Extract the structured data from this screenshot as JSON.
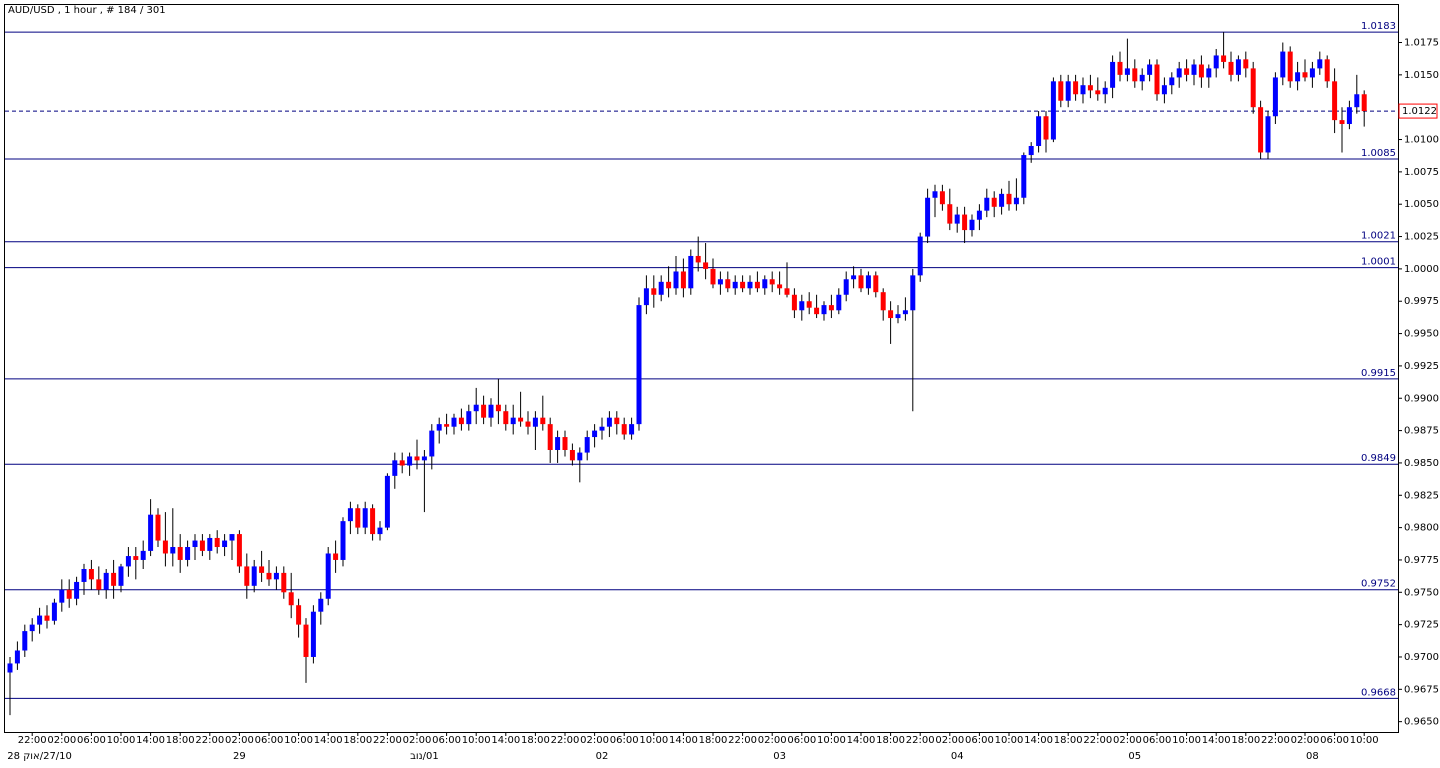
{
  "chart_data": {
    "type": "candlestick",
    "title": "AUD/USD , 1 hour , # 184 / 301",
    "up_color": "#0000ff",
    "down_color": "#ff0000",
    "wick_color": "#000000",
    "level_color": "#000080",
    "ylim": [
      0.9642,
      1.0204
    ],
    "yticks": [
      {
        "value": 0.965,
        "label": "0.9650"
      },
      0.9675,
      {
        "value": 0.97,
        "label": "0.9700"
      },
      0.9725,
      {
        "value": 0.975,
        "label": "0.9750"
      },
      0.9775,
      {
        "value": 0.98,
        "label": "0.9800"
      },
      0.9825,
      {
        "value": 0.985,
        "label": "0.9850"
      },
      0.9875,
      {
        "value": 0.99,
        "label": "0.9900"
      },
      0.9925,
      {
        "value": 0.995,
        "label": "0.9950"
      },
      0.9975,
      {
        "value": 1.0,
        "label": "1.0000"
      },
      1.0025,
      {
        "value": 1.005,
        "label": "1.0050"
      },
      1.0075,
      {
        "value": 1.01,
        "label": "1.0100"
      },
      {
        "value": 1.015,
        "label": "1.0150"
      },
      1.0175
    ],
    "levels": [
      1.0183,
      1.0085,
      1.0021,
      1.0001,
      0.9915,
      0.9849,
      0.9752,
      0.9668
    ],
    "current_price": 1.0122,
    "xticks": [
      {
        "value": 3,
        "label": "22:00"
      },
      {
        "value": 7,
        "label": "02:00"
      },
      {
        "value": 11,
        "label": "06:00"
      },
      {
        "value": 15,
        "label": "10:00"
      },
      {
        "value": 19,
        "label": "14:00"
      },
      {
        "value": 23,
        "label": "18:00"
      },
      {
        "value": 27,
        "label": "22:00"
      },
      {
        "value": 31,
        "label": "02:00"
      },
      {
        "value": 35,
        "label": "06:00"
      },
      {
        "value": 39,
        "label": "10:00"
      },
      {
        "value": 43,
        "label": "14:00"
      },
      {
        "value": 47,
        "label": "18:00"
      },
      {
        "value": 51,
        "label": "22:00"
      },
      {
        "value": 55,
        "label": "02:00"
      },
      {
        "value": 59,
        "label": "06:00"
      },
      {
        "value": 63,
        "label": "10:00"
      },
      {
        "value": 67,
        "label": "14:00"
      },
      {
        "value": 71,
        "label": "18:00"
      },
      {
        "value": 75,
        "label": "22:00"
      },
      {
        "value": 79,
        "label": "02:00"
      },
      {
        "value": 83,
        "label": "06:00"
      },
      {
        "value": 87,
        "label": "10:00"
      },
      {
        "value": 91,
        "label": "14:00"
      },
      {
        "value": 95,
        "label": "18:00"
      },
      {
        "value": 99,
        "label": "22:00"
      },
      {
        "value": 103,
        "label": "02:00"
      },
      {
        "value": 107,
        "label": "06:00"
      },
      {
        "value": 111,
        "label": "10:00"
      },
      {
        "value": 115,
        "label": "14:00"
      },
      {
        "value": 119,
        "label": "18:00"
      },
      {
        "value": 123,
        "label": "22:00"
      },
      {
        "value": 127,
        "label": "02:00"
      },
      {
        "value": 131,
        "label": "06:00"
      },
      {
        "value": 135,
        "label": "10:00"
      },
      {
        "value": 139,
        "label": "14:00"
      },
      {
        "value": 143,
        "label": "18:00"
      },
      {
        "value": 147,
        "label": "22:00"
      },
      {
        "value": 151,
        "label": "02:00"
      },
      {
        "value": 155,
        "label": "06:00"
      },
      {
        "value": 159,
        "label": "10:00"
      },
      {
        "value": 163,
        "label": "14:00"
      },
      {
        "value": 167,
        "label": "18:00"
      },
      {
        "value": 171,
        "label": "22:00"
      },
      {
        "value": 175,
        "label": "02:00"
      },
      {
        "value": 179,
        "label": "06:00"
      },
      {
        "value": 183,
        "label": "10:00"
      }
    ],
    "date_ticks": [
      {
        "value": 4,
        "label": "27/10/אוק 28"
      },
      {
        "value": 31,
        "label": "29"
      },
      {
        "value": 56,
        "label": "01/נוב"
      },
      {
        "value": 80,
        "label": "02"
      },
      {
        "value": 104,
        "label": "03"
      },
      {
        "value": 128,
        "label": "04"
      },
      {
        "value": 152,
        "label": "05"
      },
      {
        "value": 176,
        "label": "08"
      }
    ],
    "ohlc": [
      [
        0.9688,
        0.97,
        0.9655,
        0.9695
      ],
      [
        0.9695,
        0.9712,
        0.969,
        0.9705
      ],
      [
        0.9705,
        0.9725,
        0.97,
        0.972
      ],
      [
        0.972,
        0.973,
        0.9712,
        0.9725
      ],
      [
        0.9725,
        0.9738,
        0.9718,
        0.9732
      ],
      [
        0.9732,
        0.974,
        0.9722,
        0.9728
      ],
      [
        0.9728,
        0.9745,
        0.9725,
        0.9742
      ],
      [
        0.9742,
        0.976,
        0.9735,
        0.9752
      ],
      [
        0.9752,
        0.976,
        0.9738,
        0.9745
      ],
      [
        0.9745,
        0.9762,
        0.974,
        0.9758
      ],
      [
        0.9758,
        0.9772,
        0.9748,
        0.9768
      ],
      [
        0.9768,
        0.9775,
        0.9752,
        0.976
      ],
      [
        0.976,
        0.977,
        0.9748,
        0.9752
      ],
      [
        0.9752,
        0.9768,
        0.9745,
        0.9765
      ],
      [
        0.9765,
        0.9775,
        0.9745,
        0.9755
      ],
      [
        0.9755,
        0.9772,
        0.975,
        0.977
      ],
      [
        0.977,
        0.9785,
        0.9762,
        0.9778
      ],
      [
        0.9778,
        0.9785,
        0.976,
        0.9775
      ],
      [
        0.9775,
        0.979,
        0.9768,
        0.9782
      ],
      [
        0.9782,
        0.9822,
        0.9778,
        0.981
      ],
      [
        0.981,
        0.9815,
        0.9785,
        0.979
      ],
      [
        0.979,
        0.9812,
        0.977,
        0.978
      ],
      [
        0.978,
        0.9815,
        0.977,
        0.9785
      ],
      [
        0.9785,
        0.9795,
        0.9765,
        0.9775
      ],
      [
        0.9775,
        0.979,
        0.977,
        0.9785
      ],
      [
        0.9785,
        0.9795,
        0.9775,
        0.979
      ],
      [
        0.979,
        0.9795,
        0.9778,
        0.9782
      ],
      [
        0.9782,
        0.9795,
        0.9775,
        0.9792
      ],
      [
        0.9792,
        0.9798,
        0.978,
        0.9785
      ],
      [
        0.9785,
        0.9795,
        0.9778,
        0.979
      ],
      [
        0.979,
        0.9795,
        0.9775,
        0.9795
      ],
      [
        0.9795,
        0.9798,
        0.9765,
        0.977
      ],
      [
        0.977,
        0.978,
        0.9745,
        0.9755
      ],
      [
        0.9755,
        0.9775,
        0.975,
        0.977
      ],
      [
        0.977,
        0.9782,
        0.9758,
        0.9765
      ],
      [
        0.9765,
        0.9775,
        0.9755,
        0.976
      ],
      [
        0.976,
        0.977,
        0.9752,
        0.9765
      ],
      [
        0.9765,
        0.977,
        0.9745,
        0.975
      ],
      [
        0.975,
        0.9765,
        0.973,
        0.974
      ],
      [
        0.974,
        0.9745,
        0.9715,
        0.9725
      ],
      [
        0.9725,
        0.973,
        0.968,
        0.97
      ],
      [
        0.97,
        0.974,
        0.9695,
        0.9735
      ],
      [
        0.9735,
        0.975,
        0.9725,
        0.9745
      ],
      [
        0.9745,
        0.9785,
        0.974,
        0.978
      ],
      [
        0.978,
        0.979,
        0.9765,
        0.9775
      ],
      [
        0.9775,
        0.9808,
        0.977,
        0.9805
      ],
      [
        0.9805,
        0.982,
        0.9795,
        0.9815
      ],
      [
        0.9815,
        0.9818,
        0.9795,
        0.98
      ],
      [
        0.98,
        0.982,
        0.9795,
        0.9815
      ],
      [
        0.9815,
        0.9818,
        0.979,
        0.9795
      ],
      [
        0.9795,
        0.9805,
        0.979,
        0.98
      ],
      [
        0.98,
        0.9842,
        0.9798,
        0.984
      ],
      [
        0.984,
        0.9858,
        0.983,
        0.9852
      ],
      [
        0.9852,
        0.9858,
        0.9842,
        0.9848
      ],
      [
        0.9848,
        0.9858,
        0.984,
        0.9855
      ],
      [
        0.9855,
        0.9868,
        0.9845,
        0.9852
      ],
      [
        0.9852,
        0.986,
        0.9812,
        0.9855
      ],
      [
        0.9855,
        0.988,
        0.9845,
        0.9875
      ],
      [
        0.9875,
        0.9885,
        0.9865,
        0.988
      ],
      [
        0.988,
        0.9888,
        0.9872,
        0.9878
      ],
      [
        0.9878,
        0.9888,
        0.9872,
        0.9885
      ],
      [
        0.9885,
        0.9892,
        0.9875,
        0.988
      ],
      [
        0.988,
        0.9895,
        0.9875,
        0.989
      ],
      [
        0.989,
        0.9908,
        0.988,
        0.9895
      ],
      [
        0.9895,
        0.9902,
        0.988,
        0.9885
      ],
      [
        0.9885,
        0.99,
        0.9878,
        0.9895
      ],
      [
        0.9895,
        0.9915,
        0.988,
        0.989
      ],
      [
        0.989,
        0.9895,
        0.9875,
        0.988
      ],
      [
        0.988,
        0.9895,
        0.9872,
        0.9885
      ],
      [
        0.9885,
        0.9905,
        0.9878,
        0.9882
      ],
      [
        0.9882,
        0.989,
        0.9872,
        0.9878
      ],
      [
        0.9878,
        0.989,
        0.986,
        0.9885
      ],
      [
        0.9885,
        0.9902,
        0.9875,
        0.988
      ],
      [
        0.988,
        0.9885,
        0.985,
        0.986
      ],
      [
        0.986,
        0.9875,
        0.985,
        0.987
      ],
      [
        0.987,
        0.9875,
        0.9855,
        0.986
      ],
      [
        0.986,
        0.9865,
        0.9848,
        0.9852
      ],
      [
        0.9852,
        0.9862,
        0.9835,
        0.9858
      ],
      [
        0.9858,
        0.9875,
        0.9852,
        0.987
      ],
      [
        0.987,
        0.988,
        0.9862,
        0.9875
      ],
      [
        0.9875,
        0.9885,
        0.9868,
        0.9878
      ],
      [
        0.9878,
        0.989,
        0.987,
        0.9885
      ],
      [
        0.9885,
        0.989,
        0.9872,
        0.988
      ],
      [
        0.988,
        0.9885,
        0.9868,
        0.9872
      ],
      [
        0.9872,
        0.9885,
        0.9868,
        0.988
      ],
      [
        0.988,
        0.9978,
        0.9875,
        0.9972
      ],
      [
        0.9972,
        0.9995,
        0.9965,
        0.9985
      ],
      [
        0.9985,
        0.9995,
        0.997,
        0.998
      ],
      [
        0.998,
        0.9995,
        0.9975,
        0.999
      ],
      [
        0.999,
        1.0002,
        0.9978,
        0.9985
      ],
      [
        0.9985,
        1.001,
        0.998,
        0.9998
      ],
      [
        0.9998,
        1.0008,
        0.9978,
        0.9985
      ],
      [
        0.9985,
        1.0015,
        0.998,
        1.001
      ],
      [
        1.001,
        1.0025,
        0.9998,
        1.0005
      ],
      [
        1.0005,
        1.002,
        0.9992,
        1.0
      ],
      [
        1.0,
        1.0008,
        0.9985,
        0.9988
      ],
      [
        0.9988,
        0.9998,
        0.998,
        0.9992
      ],
      [
        0.9992,
        0.9998,
        0.9982,
        0.9985
      ],
      [
        0.9985,
        0.9995,
        0.998,
        0.999
      ],
      [
        0.999,
        0.9995,
        0.9982,
        0.9985
      ],
      [
        0.9985,
        0.9995,
        0.998,
        0.999
      ],
      [
        0.999,
        0.9998,
        0.9982,
        0.9985
      ],
      [
        0.9985,
        0.9995,
        0.998,
        0.9992
      ],
      [
        0.9992,
        0.9998,
        0.9982,
        0.9988
      ],
      [
        0.9988,
        0.9998,
        0.998,
        0.9985
      ],
      [
        0.9985,
        1.0005,
        0.9978,
        0.998
      ],
      [
        0.998,
        0.9985,
        0.9962,
        0.9968
      ],
      [
        0.9968,
        0.998,
        0.996,
        0.9975
      ],
      [
        0.9975,
        0.9982,
        0.9965,
        0.997
      ],
      [
        0.997,
        0.998,
        0.9962,
        0.9965
      ],
      [
        0.9965,
        0.9975,
        0.996,
        0.9972
      ],
      [
        0.9972,
        0.998,
        0.9962,
        0.9968
      ],
      [
        0.9968,
        0.9985,
        0.9965,
        0.998
      ],
      [
        0.998,
        0.9998,
        0.9975,
        0.9992
      ],
      [
        0.9992,
        1.0002,
        0.9985,
        0.9995
      ],
      [
        0.9995,
        1.0,
        0.9982,
        0.9985
      ],
      [
        0.9985,
        0.9998,
        0.998,
        0.9995
      ],
      [
        0.9995,
        0.9998,
        0.9978,
        0.9982
      ],
      [
        0.9982,
        0.9985,
        0.996,
        0.9968
      ],
      [
        0.9968,
        0.9975,
        0.9942,
        0.9962
      ],
      [
        0.9962,
        0.9972,
        0.9958,
        0.9965
      ],
      [
        0.9965,
        0.9978,
        0.996,
        0.9968
      ],
      [
        0.9968,
        1.0,
        0.989,
        0.9995
      ],
      [
        0.9995,
        1.0028,
        0.999,
        1.0025
      ],
      [
        1.0025,
        1.0062,
        1.002,
        1.0055
      ],
      [
        1.0055,
        1.0065,
        1.004,
        1.006
      ],
      [
        1.006,
        1.0065,
        1.0045,
        1.005
      ],
      [
        1.005,
        1.0062,
        1.003,
        1.0035
      ],
      [
        1.0035,
        1.0048,
        1.0028,
        1.0042
      ],
      [
        1.0042,
        1.0048,
        1.002,
        1.003
      ],
      [
        1.003,
        1.0042,
        1.0025,
        1.0038
      ],
      [
        1.0038,
        1.005,
        1.003,
        1.0045
      ],
      [
        1.0045,
        1.0062,
        1.004,
        1.0055
      ],
      [
        1.0055,
        1.006,
        1.004,
        1.0048
      ],
      [
        1.0048,
        1.0062,
        1.0042,
        1.0058
      ],
      [
        1.0058,
        1.0068,
        1.0045,
        1.005
      ],
      [
        1.005,
        1.007,
        1.0045,
        1.0055
      ],
      [
        1.0055,
        1.009,
        1.005,
        1.0088
      ],
      [
        1.0088,
        1.0098,
        1.0082,
        1.0095
      ],
      [
        1.0095,
        1.0122,
        1.009,
        1.0118
      ],
      [
        1.0118,
        1.0122,
        1.009,
        1.01
      ],
      [
        1.01,
        1.0148,
        1.0098,
        1.0145
      ],
      [
        1.0145,
        1.015,
        1.0125,
        1.013
      ],
      [
        1.013,
        1.015,
        1.0125,
        1.0145
      ],
      [
        1.0145,
        1.015,
        1.013,
        1.0135
      ],
      [
        1.0135,
        1.0148,
        1.0128,
        1.0142
      ],
      [
        1.0142,
        1.015,
        1.0132,
        1.0138
      ],
      [
        1.0138,
        1.0148,
        1.013,
        1.0135
      ],
      [
        1.0135,
        1.0145,
        1.0128,
        1.014
      ],
      [
        1.014,
        1.0165,
        1.0132,
        1.016
      ],
      [
        1.016,
        1.0168,
        1.0145,
        1.015
      ],
      [
        1.015,
        1.0178,
        1.0145,
        1.0155
      ],
      [
        1.0155,
        1.0162,
        1.014,
        1.0145
      ],
      [
        1.0145,
        1.0155,
        1.0138,
        1.015
      ],
      [
        1.015,
        1.0162,
        1.0145,
        1.0158
      ],
      [
        1.0158,
        1.0162,
        1.013,
        1.0135
      ],
      [
        1.0135,
        1.0148,
        1.0128,
        1.0142
      ],
      [
        1.0142,
        1.0152,
        1.0135,
        1.0148
      ],
      [
        1.0148,
        1.016,
        1.014,
        1.0155
      ],
      [
        1.0155,
        1.0162,
        1.0145,
        1.015
      ],
      [
        1.015,
        1.0162,
        1.0142,
        1.0158
      ],
      [
        1.0158,
        1.0165,
        1.014,
        1.0148
      ],
      [
        1.0148,
        1.0158,
        1.014,
        1.0155
      ],
      [
        1.0155,
        1.017,
        1.0148,
        1.0165
      ],
      [
        1.0165,
        1.0183,
        1.0155,
        1.016
      ],
      [
        1.016,
        1.0168,
        1.0145,
        1.015
      ],
      [
        1.015,
        1.0165,
        1.0145,
        1.0162
      ],
      [
        1.0162,
        1.0168,
        1.0148,
        1.0155
      ],
      [
        1.0155,
        1.016,
        1.012,
        1.0125
      ],
      [
        1.0125,
        1.013,
        1.0085,
        1.009
      ],
      [
        1.009,
        1.0122,
        1.0085,
        1.0118
      ],
      [
        1.0118,
        1.0152,
        1.0112,
        1.0148
      ],
      [
        1.0148,
        1.0175,
        1.0142,
        1.0168
      ],
      [
        1.0168,
        1.0172,
        1.014,
        1.0145
      ],
      [
        1.0145,
        1.016,
        1.0138,
        1.0152
      ],
      [
        1.0152,
        1.0162,
        1.0145,
        1.0148
      ],
      [
        1.0148,
        1.016,
        1.014,
        1.0155
      ],
      [
        1.0155,
        1.0168,
        1.015,
        1.0162
      ],
      [
        1.0162,
        1.0165,
        1.014,
        1.0145
      ],
      [
        1.0145,
        1.0155,
        1.0105,
        1.0115
      ],
      [
        1.0115,
        1.0125,
        1.009,
        1.0112
      ],
      [
        1.0112,
        1.013,
        1.0108,
        1.0125
      ],
      [
        1.0125,
        1.015,
        1.012,
        1.0135
      ],
      [
        1.0135,
        1.0138,
        1.011,
        1.0122
      ]
    ]
  }
}
